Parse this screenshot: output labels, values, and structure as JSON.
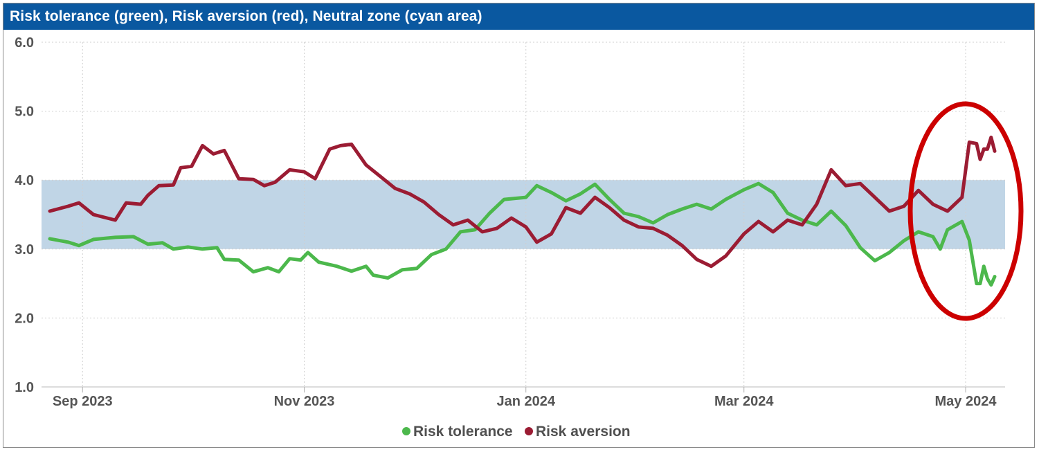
{
  "chart_data": {
    "type": "line",
    "title": "Risk tolerance (green), Risk aversion (red), Neutral zone (cyan area)",
    "ylim": [
      1.0,
      6.0
    ],
    "y_ticks": [
      "1.0",
      "2.0",
      "3.0",
      "4.0",
      "5.0",
      "6.0"
    ],
    "x_ticks": [
      "Sep 2023",
      "Nov 2023",
      "Jan 2024",
      "Mar 2024",
      "May 2024"
    ],
    "x_range": [
      "2023-08-23",
      "2024-05-09"
    ],
    "grid": true,
    "legend_position": "bottom",
    "neutral_zone": {
      "from": 3.0,
      "to": 4.0,
      "color": "#c0d5e6"
    },
    "highlight": {
      "shape": "ellipse",
      "color": "#cc0000",
      "x_center": "2024-05-01",
      "y_center": 3.55
    },
    "series": [
      {
        "name": "Risk tolerance",
        "color": "#4cb84c",
        "points": [
          [
            "2023-08-23",
            3.15
          ],
          [
            "2023-08-28",
            3.1
          ],
          [
            "2023-08-31",
            3.05
          ],
          [
            "2023-09-04",
            3.14
          ],
          [
            "2023-09-10",
            3.17
          ],
          [
            "2023-09-15",
            3.18
          ],
          [
            "2023-09-19",
            3.07
          ],
          [
            "2023-09-23",
            3.09
          ],
          [
            "2023-09-26",
            3.0
          ],
          [
            "2023-09-30",
            3.03
          ],
          [
            "2023-10-04",
            3.0
          ],
          [
            "2023-10-08",
            3.02
          ],
          [
            "2023-10-10",
            2.85
          ],
          [
            "2023-10-14",
            2.84
          ],
          [
            "2023-10-18",
            2.67
          ],
          [
            "2023-10-22",
            2.73
          ],
          [
            "2023-10-25",
            2.67
          ],
          [
            "2023-10-28",
            2.86
          ],
          [
            "2023-10-31",
            2.84
          ],
          [
            "2023-11-02",
            2.95
          ],
          [
            "2023-11-05",
            2.81
          ],
          [
            "2023-11-10",
            2.75
          ],
          [
            "2023-11-14",
            2.68
          ],
          [
            "2023-11-18",
            2.75
          ],
          [
            "2023-11-20",
            2.62
          ],
          [
            "2023-11-24",
            2.58
          ],
          [
            "2023-11-28",
            2.7
          ],
          [
            "2023-12-02",
            2.72
          ],
          [
            "2023-12-06",
            2.92
          ],
          [
            "2023-12-10",
            3.0
          ],
          [
            "2023-12-14",
            3.25
          ],
          [
            "2023-12-18",
            3.28
          ],
          [
            "2023-12-22",
            3.52
          ],
          [
            "2023-12-26",
            3.72
          ],
          [
            "2024-01-01",
            3.75
          ],
          [
            "2024-01-04",
            3.92
          ],
          [
            "2024-01-08",
            3.82
          ],
          [
            "2024-01-12",
            3.7
          ],
          [
            "2024-01-16",
            3.8
          ],
          [
            "2024-01-20",
            3.94
          ],
          [
            "2024-01-24",
            3.72
          ],
          [
            "2024-01-28",
            3.52
          ],
          [
            "2024-02-01",
            3.47
          ],
          [
            "2024-02-05",
            3.38
          ],
          [
            "2024-02-09",
            3.5
          ],
          [
            "2024-02-13",
            3.58
          ],
          [
            "2024-02-17",
            3.65
          ],
          [
            "2024-02-21",
            3.58
          ],
          [
            "2024-02-25",
            3.72
          ],
          [
            "2024-03-01",
            3.86
          ],
          [
            "2024-03-05",
            3.95
          ],
          [
            "2024-03-09",
            3.82
          ],
          [
            "2024-03-13",
            3.52
          ],
          [
            "2024-03-17",
            3.42
          ],
          [
            "2024-03-21",
            3.35
          ],
          [
            "2024-03-25",
            3.55
          ],
          [
            "2024-03-29",
            3.34
          ],
          [
            "2024-04-02",
            3.02
          ],
          [
            "2024-04-06",
            2.83
          ],
          [
            "2024-04-10",
            2.95
          ],
          [
            "2024-04-14",
            3.12
          ],
          [
            "2024-04-18",
            3.25
          ],
          [
            "2024-04-22",
            3.18
          ],
          [
            "2024-04-24",
            3.0
          ],
          [
            "2024-04-26",
            3.28
          ],
          [
            "2024-04-30",
            3.4
          ],
          [
            "2024-05-02",
            3.13
          ],
          [
            "2024-05-04",
            2.5
          ],
          [
            "2024-05-05",
            2.5
          ],
          [
            "2024-05-06",
            2.75
          ],
          [
            "2024-05-07",
            2.57
          ],
          [
            "2024-05-08",
            2.48
          ],
          [
            "2024-05-09",
            2.6
          ]
        ]
      },
      {
        "name": "Risk aversion",
        "color": "#9b1c33",
        "points": [
          [
            "2023-08-23",
            3.55
          ],
          [
            "2023-08-28",
            3.62
          ],
          [
            "2023-08-31",
            3.67
          ],
          [
            "2023-09-04",
            3.5
          ],
          [
            "2023-09-10",
            3.42
          ],
          [
            "2023-09-13",
            3.67
          ],
          [
            "2023-09-17",
            3.65
          ],
          [
            "2023-09-19",
            3.78
          ],
          [
            "2023-09-22",
            3.92
          ],
          [
            "2023-09-26",
            3.93
          ],
          [
            "2023-09-28",
            4.18
          ],
          [
            "2023-10-01",
            4.2
          ],
          [
            "2023-10-04",
            4.5
          ],
          [
            "2023-10-07",
            4.38
          ],
          [
            "2023-10-10",
            4.43
          ],
          [
            "2023-10-14",
            4.02
          ],
          [
            "2023-10-18",
            4.01
          ],
          [
            "2023-10-21",
            3.92
          ],
          [
            "2023-10-24",
            3.97
          ],
          [
            "2023-10-28",
            4.15
          ],
          [
            "2023-11-01",
            4.12
          ],
          [
            "2023-11-04",
            4.02
          ],
          [
            "2023-11-08",
            4.45
          ],
          [
            "2023-11-11",
            4.5
          ],
          [
            "2023-11-14",
            4.52
          ],
          [
            "2023-11-18",
            4.22
          ],
          [
            "2023-11-22",
            4.05
          ],
          [
            "2023-11-26",
            3.88
          ],
          [
            "2023-11-30",
            3.8
          ],
          [
            "2023-12-04",
            3.68
          ],
          [
            "2023-12-08",
            3.5
          ],
          [
            "2023-12-12",
            3.35
          ],
          [
            "2023-12-16",
            3.42
          ],
          [
            "2023-12-20",
            3.25
          ],
          [
            "2023-12-24",
            3.3
          ],
          [
            "2023-12-28",
            3.45
          ],
          [
            "2024-01-01",
            3.32
          ],
          [
            "2024-01-04",
            3.1
          ],
          [
            "2024-01-08",
            3.22
          ],
          [
            "2024-01-12",
            3.6
          ],
          [
            "2024-01-16",
            3.52
          ],
          [
            "2024-01-20",
            3.75
          ],
          [
            "2024-01-24",
            3.6
          ],
          [
            "2024-01-28",
            3.42
          ],
          [
            "2024-02-01",
            3.32
          ],
          [
            "2024-02-05",
            3.3
          ],
          [
            "2024-02-09",
            3.2
          ],
          [
            "2024-02-13",
            3.05
          ],
          [
            "2024-02-17",
            2.85
          ],
          [
            "2024-02-21",
            2.75
          ],
          [
            "2024-02-25",
            2.9
          ],
          [
            "2024-03-01",
            3.22
          ],
          [
            "2024-03-05",
            3.4
          ],
          [
            "2024-03-09",
            3.25
          ],
          [
            "2024-03-13",
            3.42
          ],
          [
            "2024-03-17",
            3.35
          ],
          [
            "2024-03-21",
            3.65
          ],
          [
            "2024-03-25",
            4.15
          ],
          [
            "2024-03-29",
            3.92
          ],
          [
            "2024-04-02",
            3.95
          ],
          [
            "2024-04-06",
            3.75
          ],
          [
            "2024-04-10",
            3.55
          ],
          [
            "2024-04-14",
            3.62
          ],
          [
            "2024-04-18",
            3.85
          ],
          [
            "2024-04-22",
            3.65
          ],
          [
            "2024-04-26",
            3.55
          ],
          [
            "2024-04-30",
            3.75
          ],
          [
            "2024-05-02",
            4.55
          ],
          [
            "2024-05-04",
            4.53
          ],
          [
            "2024-05-05",
            4.3
          ],
          [
            "2024-05-06",
            4.45
          ],
          [
            "2024-05-07",
            4.45
          ],
          [
            "2024-05-08",
            4.62
          ],
          [
            "2024-05-09",
            4.42
          ]
        ]
      }
    ]
  }
}
